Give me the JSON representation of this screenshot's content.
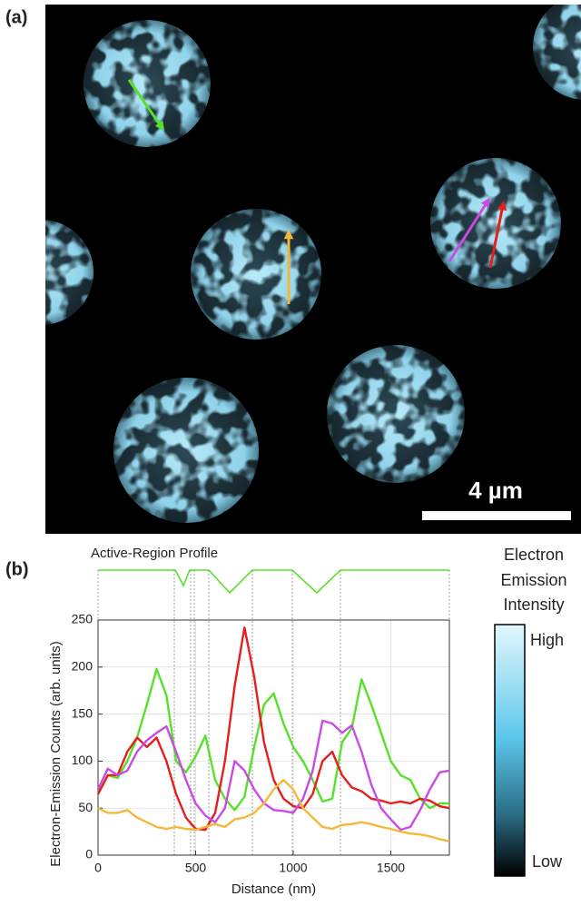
{
  "panel_a": {
    "label": "(a)",
    "scale_bar": "4 µm"
  },
  "panel_b": {
    "label": "(b)"
  },
  "colorbar": {
    "title": [
      "Electron",
      "Emission",
      "Intensity"
    ],
    "high": "High",
    "low": "Low"
  },
  "chart_data": {
    "type": "line",
    "annotation": "Active-Region Profile",
    "xlabel": "Distance (nm)",
    "ylabel": "Electron-Emission Counts (arb. units)",
    "x": [
      0,
      50,
      100,
      150,
      200,
      250,
      300,
      350,
      400,
      450,
      500,
      550,
      600,
      650,
      700,
      750,
      800,
      850,
      900,
      950,
      1000,
      1050,
      1100,
      1150,
      1200,
      1250,
      1300,
      1350,
      1400,
      1450,
      1500,
      1550,
      1600,
      1650,
      1700,
      1750,
      1800
    ],
    "series": [
      {
        "color": "#58e02a",
        "values": [
          65,
          85,
          82,
          100,
          125,
          160,
          198,
          170,
          100,
          88,
          105,
          127,
          80,
          60,
          48,
          62,
          115,
          160,
          172,
          140,
          115,
          100,
          80,
          57,
          60,
          120,
          135,
          187,
          160,
          130,
          100,
          85,
          80,
          60,
          50,
          55,
          55
        ]
      },
      {
        "color": "#e51e1e",
        "values": [
          65,
          85,
          85,
          110,
          125,
          115,
          125,
          100,
          65,
          40,
          28,
          27,
          45,
          100,
          180,
          242,
          190,
          120,
          80,
          60,
          52,
          50,
          65,
          100,
          110,
          85,
          72,
          68,
          60,
          58,
          55,
          57,
          55,
          60,
          58,
          52,
          50
        ]
      },
      {
        "color": "#c84be6",
        "values": [
          70,
          92,
          85,
          90,
          110,
          122,
          130,
          137,
          110,
          80,
          55,
          42,
          35,
          50,
          100,
          90,
          70,
          55,
          48,
          47,
          45,
          60,
          90,
          143,
          140,
          130,
          138,
          110,
          75,
          50,
          38,
          27,
          30,
          48,
          70,
          88,
          90
        ]
      },
      {
        "color": "#f5b73b",
        "values": [
          50,
          45,
          45,
          48,
          40,
          35,
          30,
          28,
          30,
          28,
          27,
          30,
          33,
          30,
          38,
          40,
          45,
          55,
          70,
          80,
          70,
          50,
          40,
          30,
          28,
          32,
          33,
          35,
          33,
          30,
          28,
          25,
          23,
          22,
          20,
          17,
          15
        ]
      }
    ],
    "xlim": [
      0,
      1800
    ],
    "ylim": [
      0,
      250
    ],
    "xticks": [
      0,
      500,
      1000,
      1500
    ],
    "yticks": [
      0,
      50,
      100,
      150,
      200,
      250
    ],
    "grid": true
  }
}
